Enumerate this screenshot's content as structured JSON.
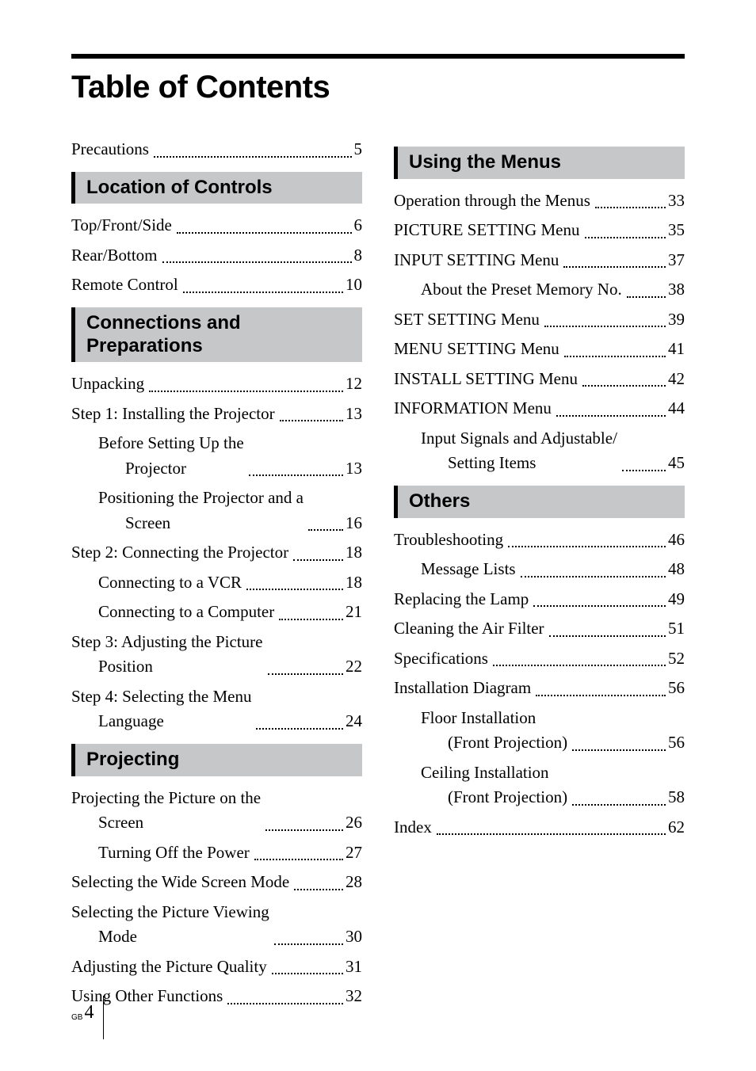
{
  "title": "Table of Contents",
  "page_label_prefix": "GB",
  "page_number": "4",
  "colors": {
    "section_bg": "#c6c7c9",
    "section_border": "#000000",
    "rule": "#000000",
    "text": "#000000"
  },
  "fonts": {
    "title_family": "Arial",
    "title_size_pt": 30,
    "section_size_pt": 18,
    "body_family": "Georgia",
    "body_size_pt": 16
  },
  "left": {
    "intro": [
      {
        "label": "Precautions",
        "page": "5",
        "indent": 0
      }
    ],
    "sections": [
      {
        "title": "Location of Controls",
        "entries": [
          {
            "label": "Top/Front/Side",
            "page": "6",
            "indent": 0
          },
          {
            "label": "Rear/Bottom",
            "page": "8",
            "indent": 0
          },
          {
            "label": "Remote Control",
            "page": "10",
            "indent": 0
          }
        ]
      },
      {
        "title": "Connections and Preparations",
        "entries": [
          {
            "label": "Unpacking",
            "page": "12",
            "indent": 0
          },
          {
            "label": "Step 1: Installing the Projector",
            "page": "13",
            "indent": 0
          },
          {
            "label": "Before Setting Up the",
            "cont": "Projector",
            "page": "13",
            "indent": 1
          },
          {
            "label": "Positioning the Projector and a",
            "cont": "Screen",
            "page": "16",
            "indent": 1
          },
          {
            "label": "Step 2: Connecting the Projector",
            "page": "18",
            "indent": 0
          },
          {
            "label": "Connecting to a VCR",
            "page": "18",
            "indent": 1
          },
          {
            "label": "Connecting to a Computer",
            "page": "21",
            "indent": 1
          },
          {
            "label": "Step 3: Adjusting the Picture",
            "cont": "Position",
            "page": "22",
            "indent": 0
          },
          {
            "label": "Step 4: Selecting the Menu",
            "cont": "Language",
            "page": "24",
            "indent": 0
          }
        ]
      },
      {
        "title": "Projecting",
        "entries": [
          {
            "label": "Projecting the Picture on the",
            "cont": "Screen",
            "page": "26",
            "indent": 0
          },
          {
            "label": "Turning Off the Power",
            "page": "27",
            "indent": 1
          },
          {
            "label": "Selecting the Wide Screen Mode",
            "page": "28",
            "indent": 0
          },
          {
            "label": "Selecting the Picture Viewing",
            "cont": "Mode",
            "page": "30",
            "indent": 0
          },
          {
            "label": "Adjusting the Picture Quality",
            "page": "31",
            "indent": 0
          },
          {
            "label": "Using Other Functions",
            "page": "32",
            "indent": 0
          }
        ]
      }
    ]
  },
  "right": {
    "sections": [
      {
        "title": "Using the Menus",
        "entries": [
          {
            "label": "Operation through the Menus",
            "page": "33",
            "indent": 0
          },
          {
            "label": "PICTURE SETTING Menu",
            "page": "35",
            "indent": 0
          },
          {
            "label": "INPUT SETTING Menu",
            "page": "37",
            "indent": 0
          },
          {
            "label": "About the Preset Memory No.",
            "page": "38",
            "indent": 1
          },
          {
            "label": "SET SETTING Menu",
            "page": "39",
            "indent": 0
          },
          {
            "label": "MENU SETTING Menu",
            "page": "41",
            "indent": 0
          },
          {
            "label": "INSTALL SETTING Menu",
            "page": "42",
            "indent": 0
          },
          {
            "label": "INFORMATION Menu",
            "page": "44",
            "indent": 0
          },
          {
            "label": "Input Signals and Adjustable/",
            "cont": "Setting Items",
            "page": "45",
            "indent": 1
          }
        ]
      },
      {
        "title": "Others",
        "entries": [
          {
            "label": "Troubleshooting",
            "page": "46",
            "indent": 0
          },
          {
            "label": "Message Lists",
            "page": "48",
            "indent": 1
          },
          {
            "label": "Replacing the Lamp",
            "page": "49",
            "indent": 0
          },
          {
            "label": "Cleaning the Air Filter",
            "page": "51",
            "indent": 0
          },
          {
            "label": "Specifications",
            "page": "52",
            "indent": 0
          },
          {
            "label": "Installation Diagram",
            "page": "56",
            "indent": 0
          },
          {
            "label": "Floor Installation",
            "cont": "(Front Projection)",
            "page": "56",
            "indent": 1
          },
          {
            "label": "Ceiling Installation",
            "cont": "(Front Projection)",
            "page": "58",
            "indent": 1
          },
          {
            "label": "Index",
            "page": "62",
            "indent": 0
          }
        ]
      }
    ]
  }
}
